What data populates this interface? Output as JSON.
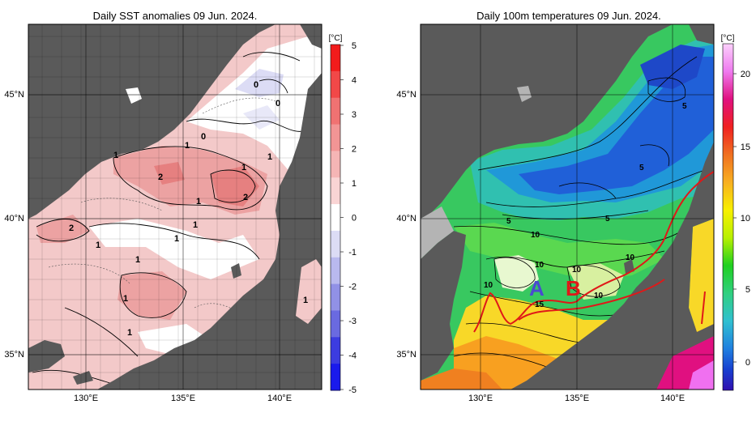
{
  "left_panel": {
    "title": "Daily SST anomalies 09 Jun. 2024.",
    "unit": "[°C]",
    "colorbar_ticks": [
      "5",
      "4",
      "3",
      "2",
      "1",
      "0",
      "-1",
      "-2",
      "-3",
      "-4",
      "-5"
    ],
    "colorbar_colors": [
      "#f21c1c",
      "#f24848",
      "#f07272",
      "#f29595",
      "#f5b5b5",
      "#f9d4d4",
      "#ffffff",
      "#dcdcf5",
      "#b9b9ee",
      "#9191e6",
      "#6a6ae0",
      "#3c3ce0",
      "#1a1aec"
    ],
    "lat_labels": [
      "45°N",
      "40°N",
      "35°N"
    ],
    "lon_labels": [
      "130°E",
      "135°E",
      "140°E"
    ],
    "contour_labels": [
      "0",
      "0",
      "0",
      "1",
      "1",
      "1",
      "1",
      "1",
      "1",
      "1",
      "1",
      "1",
      "1",
      "1",
      "1",
      "2",
      "2",
      "2"
    ]
  },
  "right_panel": {
    "title": "Daily 100m temperatures 09 Jun. 2024.",
    "unit": "[°C]",
    "colorbar_ticks": [
      "20",
      "15",
      "10",
      "5",
      "0"
    ],
    "colorbar_colors": [
      "#f8c8f8",
      "#f070f0",
      "#e01080",
      "#f02020",
      "#f07020",
      "#f8b020",
      "#f8f000",
      "#b8f000",
      "#20d020",
      "#30d080",
      "#30c0d0",
      "#2080e0",
      "#1840d0",
      "#3010b0"
    ],
    "lat_labels": [
      "45°N",
      "40°N",
      "35°N"
    ],
    "lon_labels": [
      "130°E",
      "135°E",
      "140°E"
    ],
    "contour_labels": [
      "5",
      "5",
      "5",
      "5",
      "10",
      "10",
      "10",
      "10",
      "10",
      "10",
      "15"
    ],
    "markers": [
      "A",
      "B"
    ],
    "marker_colors": {
      "A": "#4a4ad0",
      "B": "#e01818"
    }
  },
  "colors": {
    "land": "#5a5a5a",
    "no_data": "#b4b4b4",
    "grid": "#000000"
  }
}
